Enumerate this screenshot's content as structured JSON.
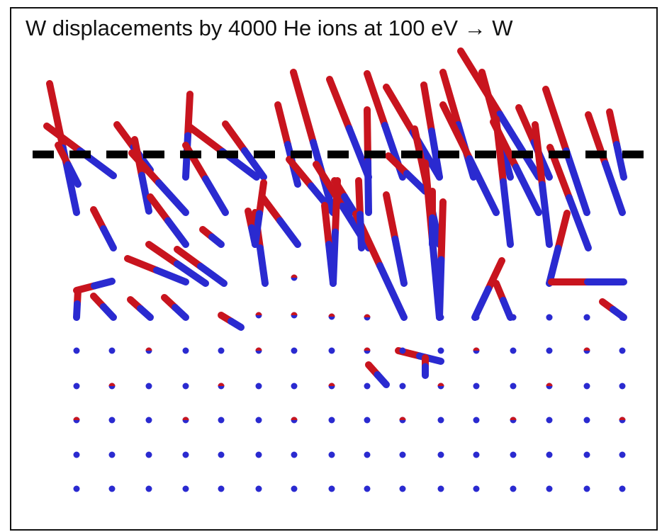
{
  "figure": {
    "title": "W displacements by 4000 He ions at 100 eV → W"
  },
  "colors": {
    "start": "#c8141e",
    "end": "#2a2ad0",
    "surface_line": "#000000",
    "frame": "#111111"
  },
  "lattice": {
    "columns": 16,
    "bulk_rows": 5,
    "note_rows": "undisplaced atoms shown as dots"
  },
  "displacements_shown": "rods from red (initial site) to blue (final site)"
}
